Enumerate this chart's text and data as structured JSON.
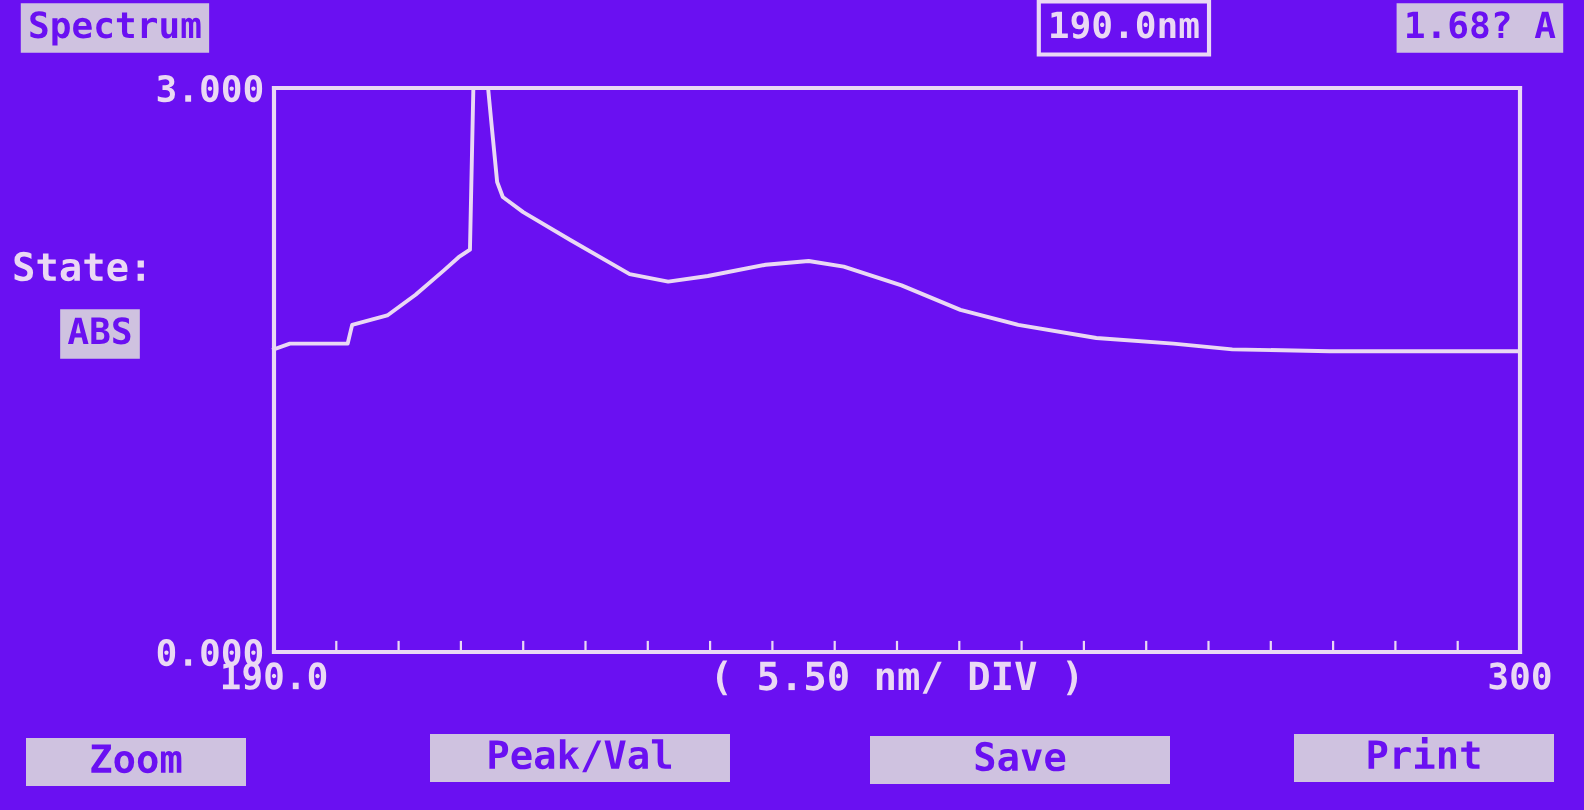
{
  "chart_data": {
    "type": "line",
    "title": "Spectrum",
    "xlabel": "( 5.50 nm/ DIV )",
    "annotations": [
      "190.0nm",
      "1.68? A",
      "State:",
      "ABS",
      "Zoom",
      "Peak/Val",
      "Save",
      "Print"
    ],
    "x": [
      190,
      191.4,
      196.5,
      196.9,
      200,
      202.5,
      205,
      206.3,
      207.3,
      207.6,
      208.9,
      209.2,
      209.7,
      210.2,
      212,
      216.2,
      221.4,
      224.8,
      228.3,
      233.4,
      237.2,
      240.3,
      245.4,
      250.6,
      255.7,
      262.6,
      269.4,
      274.6,
      283.2,
      300
    ],
    "series": [
      {
        "color": "#ead8f4",
        "values": [
          1.61,
          1.64,
          1.64,
          1.74,
          1.79,
          1.9,
          2.03,
          2.1,
          2.14,
          3.0,
          3.0,
          2.81,
          2.5,
          2.42,
          2.34,
          2.19,
          2.01,
          1.97,
          2.0,
          2.06,
          2.08,
          2.05,
          1.95,
          1.82,
          1.74,
          1.67,
          1.64,
          1.61,
          1.6,
          1.6
        ]
      }
    ],
    "xlim": [
      190,
      300
    ],
    "ylim": [
      0,
      3
    ],
    "xticks": [
      {
        "value": 190,
        "label": "190.0"
      },
      {
        "value": 195.5,
        "label": null
      },
      {
        "value": 201,
        "label": null
      },
      {
        "value": 206.5,
        "label": null
      },
      {
        "value": 212,
        "label": null
      },
      {
        "value": 217.5,
        "label": null
      },
      {
        "value": 223,
        "label": null
      },
      {
        "value": 228.5,
        "label": null
      },
      {
        "value": 234,
        "label": null
      },
      {
        "value": 239.5,
        "label": null
      },
      {
        "value": 245,
        "label": null
      },
      {
        "value": 250.5,
        "label": null
      },
      {
        "value": 256,
        "label": null
      },
      {
        "value": 261.5,
        "label": null
      },
      {
        "value": 267,
        "label": null
      },
      {
        "value": 272.5,
        "label": null
      },
      {
        "value": 278,
        "label": null
      },
      {
        "value": 283.5,
        "label": null
      },
      {
        "value": 289,
        "label": null
      },
      {
        "value": 294.5,
        "label": null
      },
      {
        "value": 300,
        "label": "300"
      }
    ],
    "yticks": [
      {
        "value": 0,
        "label": "0.000"
      },
      {
        "value": 3,
        "label": "3.000"
      }
    ],
    "grid": false,
    "legend": false,
    "marker": "none",
    "line_style": "solid"
  }
}
